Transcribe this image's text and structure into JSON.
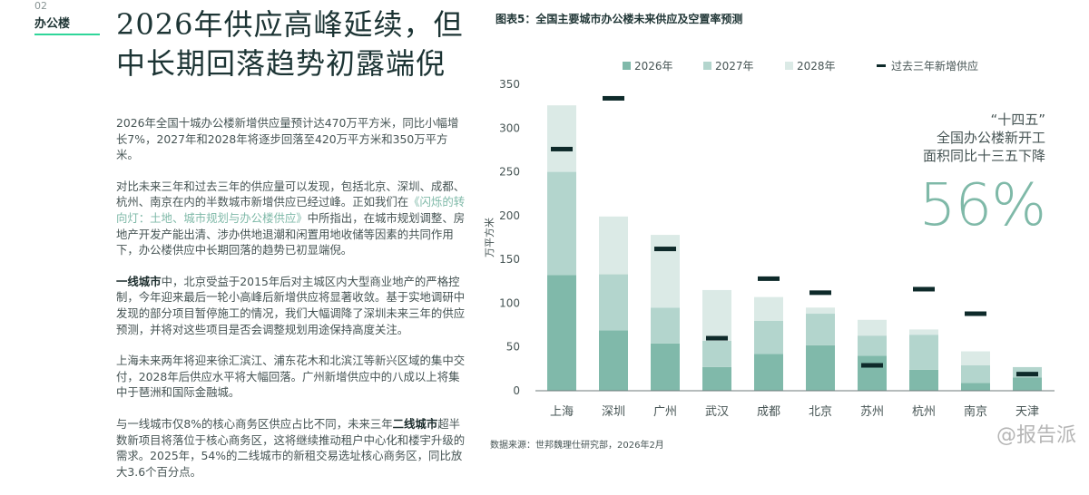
{
  "section": {
    "number": "02",
    "name": "办公楼"
  },
  "title": {
    "line1": "2026年供应高峰延续，但",
    "line2": "中长期回落趋势初露端倪"
  },
  "body": {
    "p1": "2026年全国十城办公楼新增供应量预计达470万平方米，同比小幅增长7%，2027年和2028年将逐步回落至420万平方米和350万平方米。",
    "p2a": "对比未来三年和过去三年的供应量可以发现，包括北京、深圳、成都、杭州、南京在内的半数城市新增供应已经过峰。正如我们在",
    "p2link": "《闪烁的转向灯：土地、城市规划与办公楼供应》",
    "p2b": "中所指出，在城市规划调整、房地产开发产能出清、涉办供地退潮和闲置用地收储等因素的共同作用下，办公楼供应中长期回落的趋势已初显端倪。",
    "p3bold": "一线城市",
    "p3": "中，北京受益于2015年后对主城区内大型商业地产的严格控制，今年迎来最后一轮小高峰后新增供应将显著收敛。基于实地调研中发现的部分项目暂停施工的情况，我们大幅调降了深圳未来三年的供应预测，并将对这些项目是否会调整规划用途保持高度关注。",
    "p4": "上海未来两年将迎来徐汇滨江、浦东花木和北滨江等新兴区域的集中交付，2028年后供应水平将大幅回落。广州新增供应中的八成以上将集中于琶洲和国际金融城。",
    "p5a": "与一线城市仅8%的核心商务区供应占比不同，未来三年",
    "p5bold": "二线城市",
    "p5b": "超半数新项目将落位于核心商务区，这将继续推动租户中心化和楼宇升级的需求。2025年，54%的二线城市的新租交易选址核心商务区，同比放大3.6个百分点。"
  },
  "annotation": {
    "line1": "“十四五”",
    "line2": "全国办公楼新开工",
    "line3": "面积同比十三五下降",
    "value": "56%"
  },
  "source": "数据来源：世邦魏理仕研究部，2026年2月",
  "watermark": "@报告派",
  "colors": {
    "y2026": "#80b9aa",
    "y2027": "#b3d5cd",
    "y2028": "#dbeae6",
    "past": "#0e2a2a",
    "accent": "#7fb9a8"
  },
  "chart_data": {
    "type": "bar",
    "stacked": true,
    "title": "图表5：全国主要城市办公楼未来供应及空置率预测",
    "ylabel": "万平方米",
    "ylim": [
      0,
      350
    ],
    "yticks": [
      0,
      50,
      100,
      150,
      200,
      250,
      300,
      350
    ],
    "categories": [
      "上海",
      "深圳",
      "广州",
      "武汉",
      "成都",
      "北京",
      "苏州",
      "杭州",
      "南京",
      "天津"
    ],
    "series": [
      {
        "name": "2026年",
        "values": [
          132,
          69,
          54,
          27,
          42,
          52,
          40,
          24,
          9,
          15
        ]
      },
      {
        "name": "2027年",
        "values": [
          118,
          64,
          41,
          30,
          38,
          36,
          23,
          40,
          20,
          12
        ]
      },
      {
        "name": "2028年",
        "values": [
          76,
          66,
          83,
          58,
          27,
          7,
          18,
          6,
          16,
          0
        ]
      }
    ],
    "markers": {
      "name": "过去三年新增供应",
      "values": [
        276,
        334,
        162,
        60,
        128,
        112,
        29,
        116,
        88,
        19
      ]
    },
    "legend": "top"
  }
}
